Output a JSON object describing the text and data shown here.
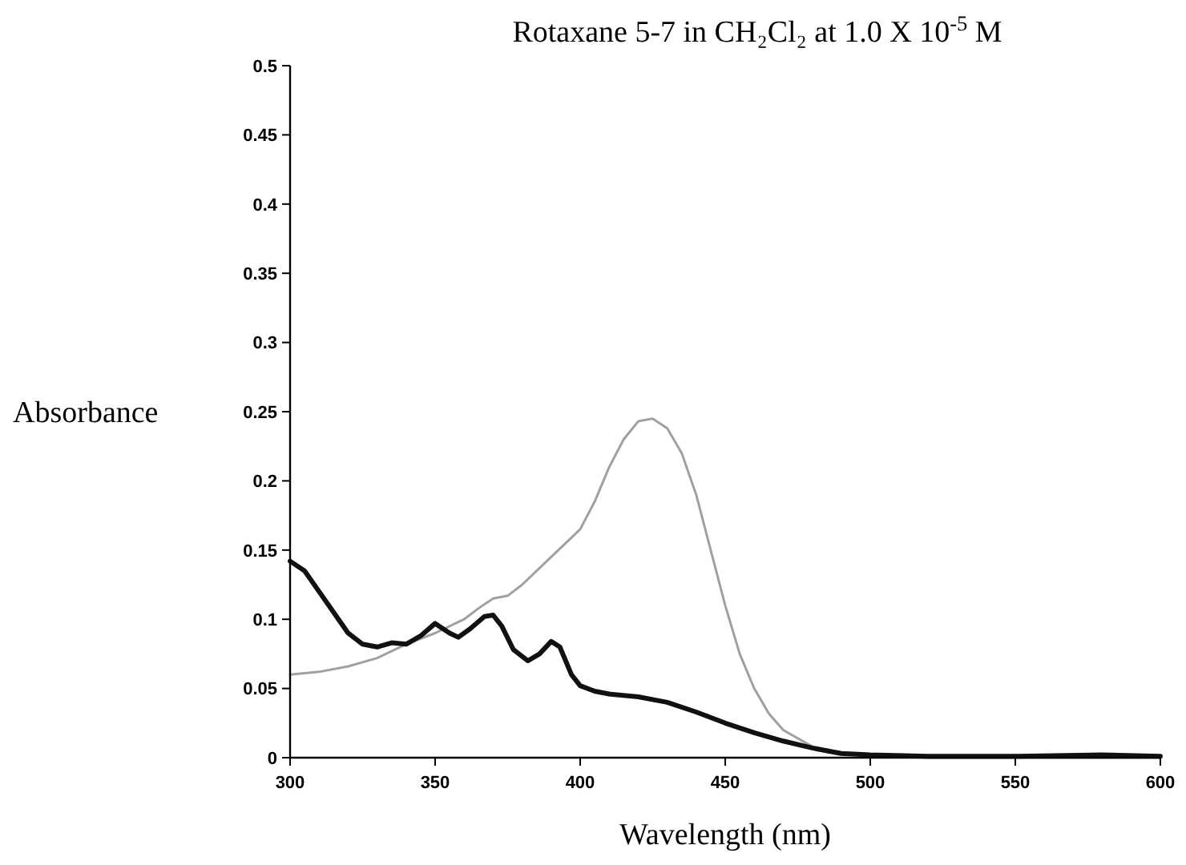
{
  "chart_data": {
    "type": "line",
    "title": "Rotaxane 5-7 in CH₂Cl₂ at 1.0 X 10$^{-5}$ M",
    "xlabel": "Wavelength (nm)",
    "ylabel": "Absorbance",
    "xlim": [
      300,
      600
    ],
    "xticks": [
      300,
      350,
      400,
      450,
      500,
      550,
      600
    ],
    "ylim": [
      0,
      0.5
    ],
    "yticks": [
      0,
      0.05,
      0.1,
      0.15,
      0.2,
      0.25,
      0.3,
      0.35,
      0.4,
      0.45,
      0.5
    ],
    "grid": false,
    "marker": "none",
    "line_style": "solid",
    "series": [
      {
        "color": "#a0a0a0",
        "x": [
          300,
          310,
          320,
          330,
          340,
          350,
          360,
          365,
          370,
          375,
          380,
          390,
          400,
          405,
          410,
          415,
          420,
          425,
          430,
          435,
          440,
          445,
          450,
          455,
          460,
          465,
          470,
          480,
          490,
          500,
          520,
          550,
          600
        ],
        "values": [
          0.06,
          0.062,
          0.066,
          0.072,
          0.082,
          0.09,
          0.1,
          0.108,
          0.115,
          0.117,
          0.125,
          0.145,
          0.165,
          0.185,
          0.21,
          0.23,
          0.243,
          0.245,
          0.238,
          0.22,
          0.19,
          0.15,
          0.11,
          0.075,
          0.05,
          0.032,
          0.02,
          0.008,
          0.003,
          0.001,
          0,
          0,
          0
        ]
      },
      {
        "color": "#111111",
        "x": [
          300,
          305,
          310,
          315,
          320,
          325,
          330,
          335,
          340,
          345,
          350,
          355,
          358,
          362,
          367,
          370,
          373,
          377,
          382,
          386,
          390,
          393,
          397,
          400,
          405,
          410,
          420,
          430,
          440,
          450,
          460,
          470,
          480,
          490,
          500,
          520,
          550,
          580,
          600
        ],
        "values": [
          0.142,
          0.135,
          0.12,
          0.105,
          0.09,
          0.082,
          0.08,
          0.083,
          0.082,
          0.088,
          0.097,
          0.09,
          0.087,
          0.093,
          0.102,
          0.103,
          0.095,
          0.078,
          0.07,
          0.075,
          0.084,
          0.08,
          0.06,
          0.052,
          0.048,
          0.046,
          0.044,
          0.04,
          0.033,
          0.025,
          0.018,
          0.012,
          0.007,
          0.003,
          0.002,
          0.001,
          0.001,
          0.002,
          0.001
        ]
      }
    ]
  }
}
